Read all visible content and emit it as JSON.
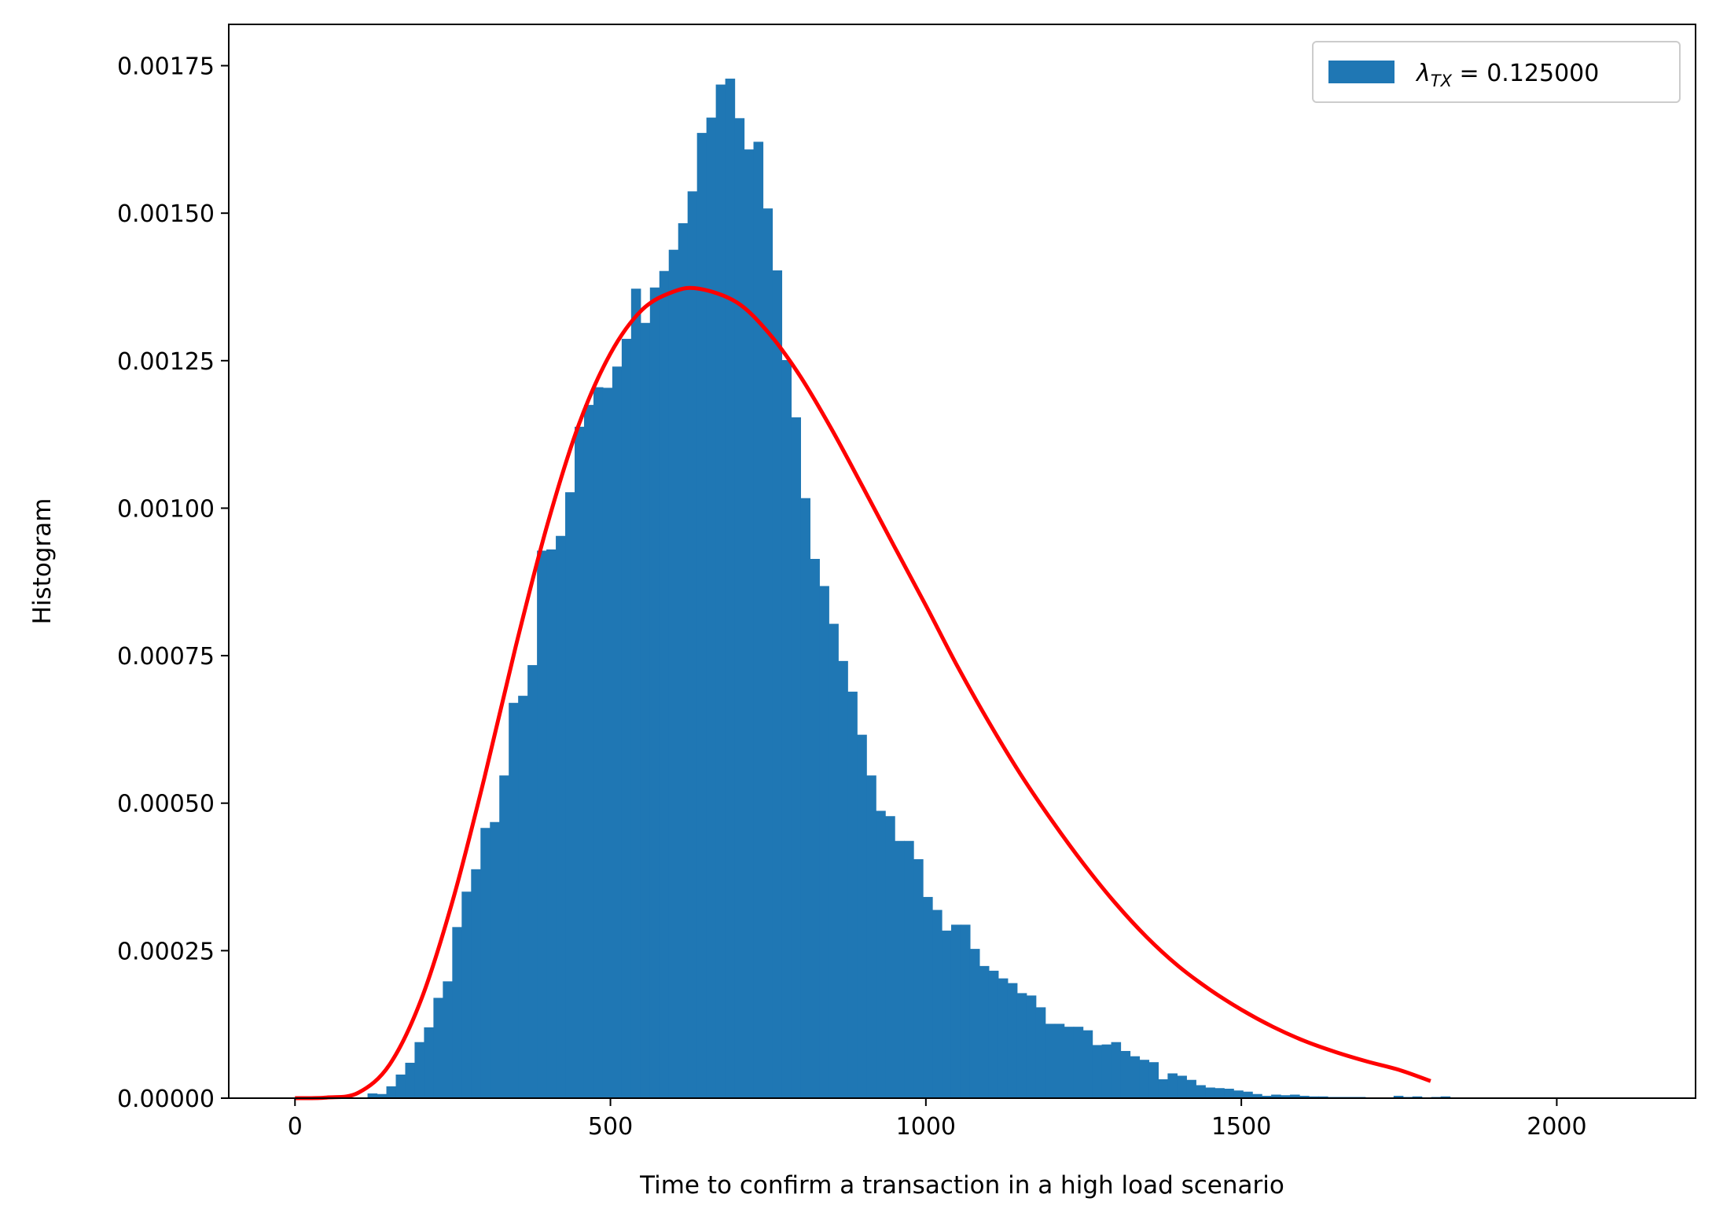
{
  "chart_data": {
    "type": "bar",
    "xlabel": "Time to confirm a transaction in a high load scenario",
    "ylabel": "Histogram",
    "xlim": [
      -105,
      2220
    ],
    "ylim": [
      0,
      0.00182
    ],
    "xticks": [
      0,
      500,
      1000,
      1500,
      2000
    ],
    "xtick_labels": [
      "0",
      "500",
      "1000",
      "1500",
      "2000"
    ],
    "yticks": [
      0,
      0.00025,
      0.0005,
      0.00075,
      0.001,
      0.00125,
      0.0015,
      0.00175
    ],
    "ytick_labels": [
      "0.00000",
      "0.00025",
      "0.00050",
      "0.00075",
      "0.00100",
      "0.00125",
      "0.00150",
      "0.00175"
    ],
    "grid": false,
    "legend": {
      "placement": "top-right",
      "entries": [
        {
          "symbol": "λ",
          "subscript": "TX",
          "suffix": " = 0.125000",
          "color": "#1f77b4",
          "kind": "patch"
        }
      ]
    },
    "histogram": {
      "color": "#1f77b4",
      "bin_start": 115,
      "bin_width": 14.92,
      "densities": [
        8e-06,
        7e-06,
        2e-05,
        4e-05,
        6e-05,
        9.5e-05,
        0.00012,
        0.00017,
        0.000198,
        0.00029,
        0.00035,
        0.000388,
        0.000458,
        0.000468,
        0.000547,
        0.00067,
        0.000682,
        0.000734,
        0.000928,
        0.00093,
        0.000953,
        0.001027,
        0.001138,
        0.001175,
        0.001205,
        0.001204,
        0.00124,
        0.001287,
        0.001372,
        0.001314,
        0.001374,
        0.001402,
        0.001438,
        0.001483,
        0.001537,
        0.001636,
        0.001662,
        0.001718,
        0.001728,
        0.001661,
        0.001608,
        0.001621,
        0.001508,
        0.001403,
        0.001251,
        0.001154,
        0.001017,
        0.000914,
        0.000868,
        0.000804,
        0.000741,
        0.000689,
        0.000616,
        0.000547,
        0.000487,
        0.000478,
        0.000436,
        0.000436,
        0.000405,
        0.000341,
        0.000319,
        0.000284,
        0.000294,
        0.000294,
        0.000253,
        0.000224,
        0.000216,
        0.000203,
        0.000195,
        0.000178,
        0.000174,
        0.000154,
        0.000126,
        0.000126,
        0.000121,
        0.000121,
        0.000115,
        9e-05,
        9.1e-05,
        9.5e-05,
        8e-05,
        7.1e-05,
        6.5e-05,
        6.1e-05,
        3.2e-05,
        4.2e-05,
        3.8e-05,
        3.1e-05,
        2.2e-05,
        1.8e-05,
        1.7e-05,
        1.6e-05,
        1.3e-05,
        1.1e-05,
        7e-06,
        4e-06,
        6e-06,
        5e-06,
        6e-06,
        4e-06,
        3e-06,
        3e-06,
        2e-06,
        2e-06,
        2e-06,
        2e-06,
        1e-06,
        1e-06,
        1e-06,
        4e-06,
        2e-06,
        3e-06,
        1e-06,
        2e-06,
        3e-06
      ]
    },
    "series": [
      {
        "type": "line",
        "color": "#ff0000",
        "x": [
          0,
          50,
          100,
          150,
          200,
          250,
          300,
          350,
          400,
          450,
          500,
          550,
          600,
          640,
          700,
          750,
          800,
          850,
          900,
          950,
          1000,
          1050,
          1100,
          1150,
          1200,
          1250,
          1300,
          1350,
          1400,
          1450,
          1500,
          1550,
          1600,
          1650,
          1700,
          1750,
          1800
        ],
        "y": [
          0,
          1e-06,
          9e-06,
          5.7e-05,
          0.000167,
          0.000335,
          0.000542,
          0.000766,
          0.000972,
          0.001142,
          0.001262,
          0.001336,
          0.001367,
          0.001372,
          0.001349,
          0.001298,
          0.001225,
          0.001135,
          0.001036,
          0.000935,
          0.000835,
          0.000732,
          0.000637,
          0.000549,
          0.00047,
          0.000397,
          0.000331,
          0.000273,
          0.000224,
          0.000184,
          0.00015,
          0.000121,
          9.7e-05,
          7.8e-05,
          6.2e-05,
          4.8e-05,
          2.9e-05
        ]
      }
    ]
  }
}
